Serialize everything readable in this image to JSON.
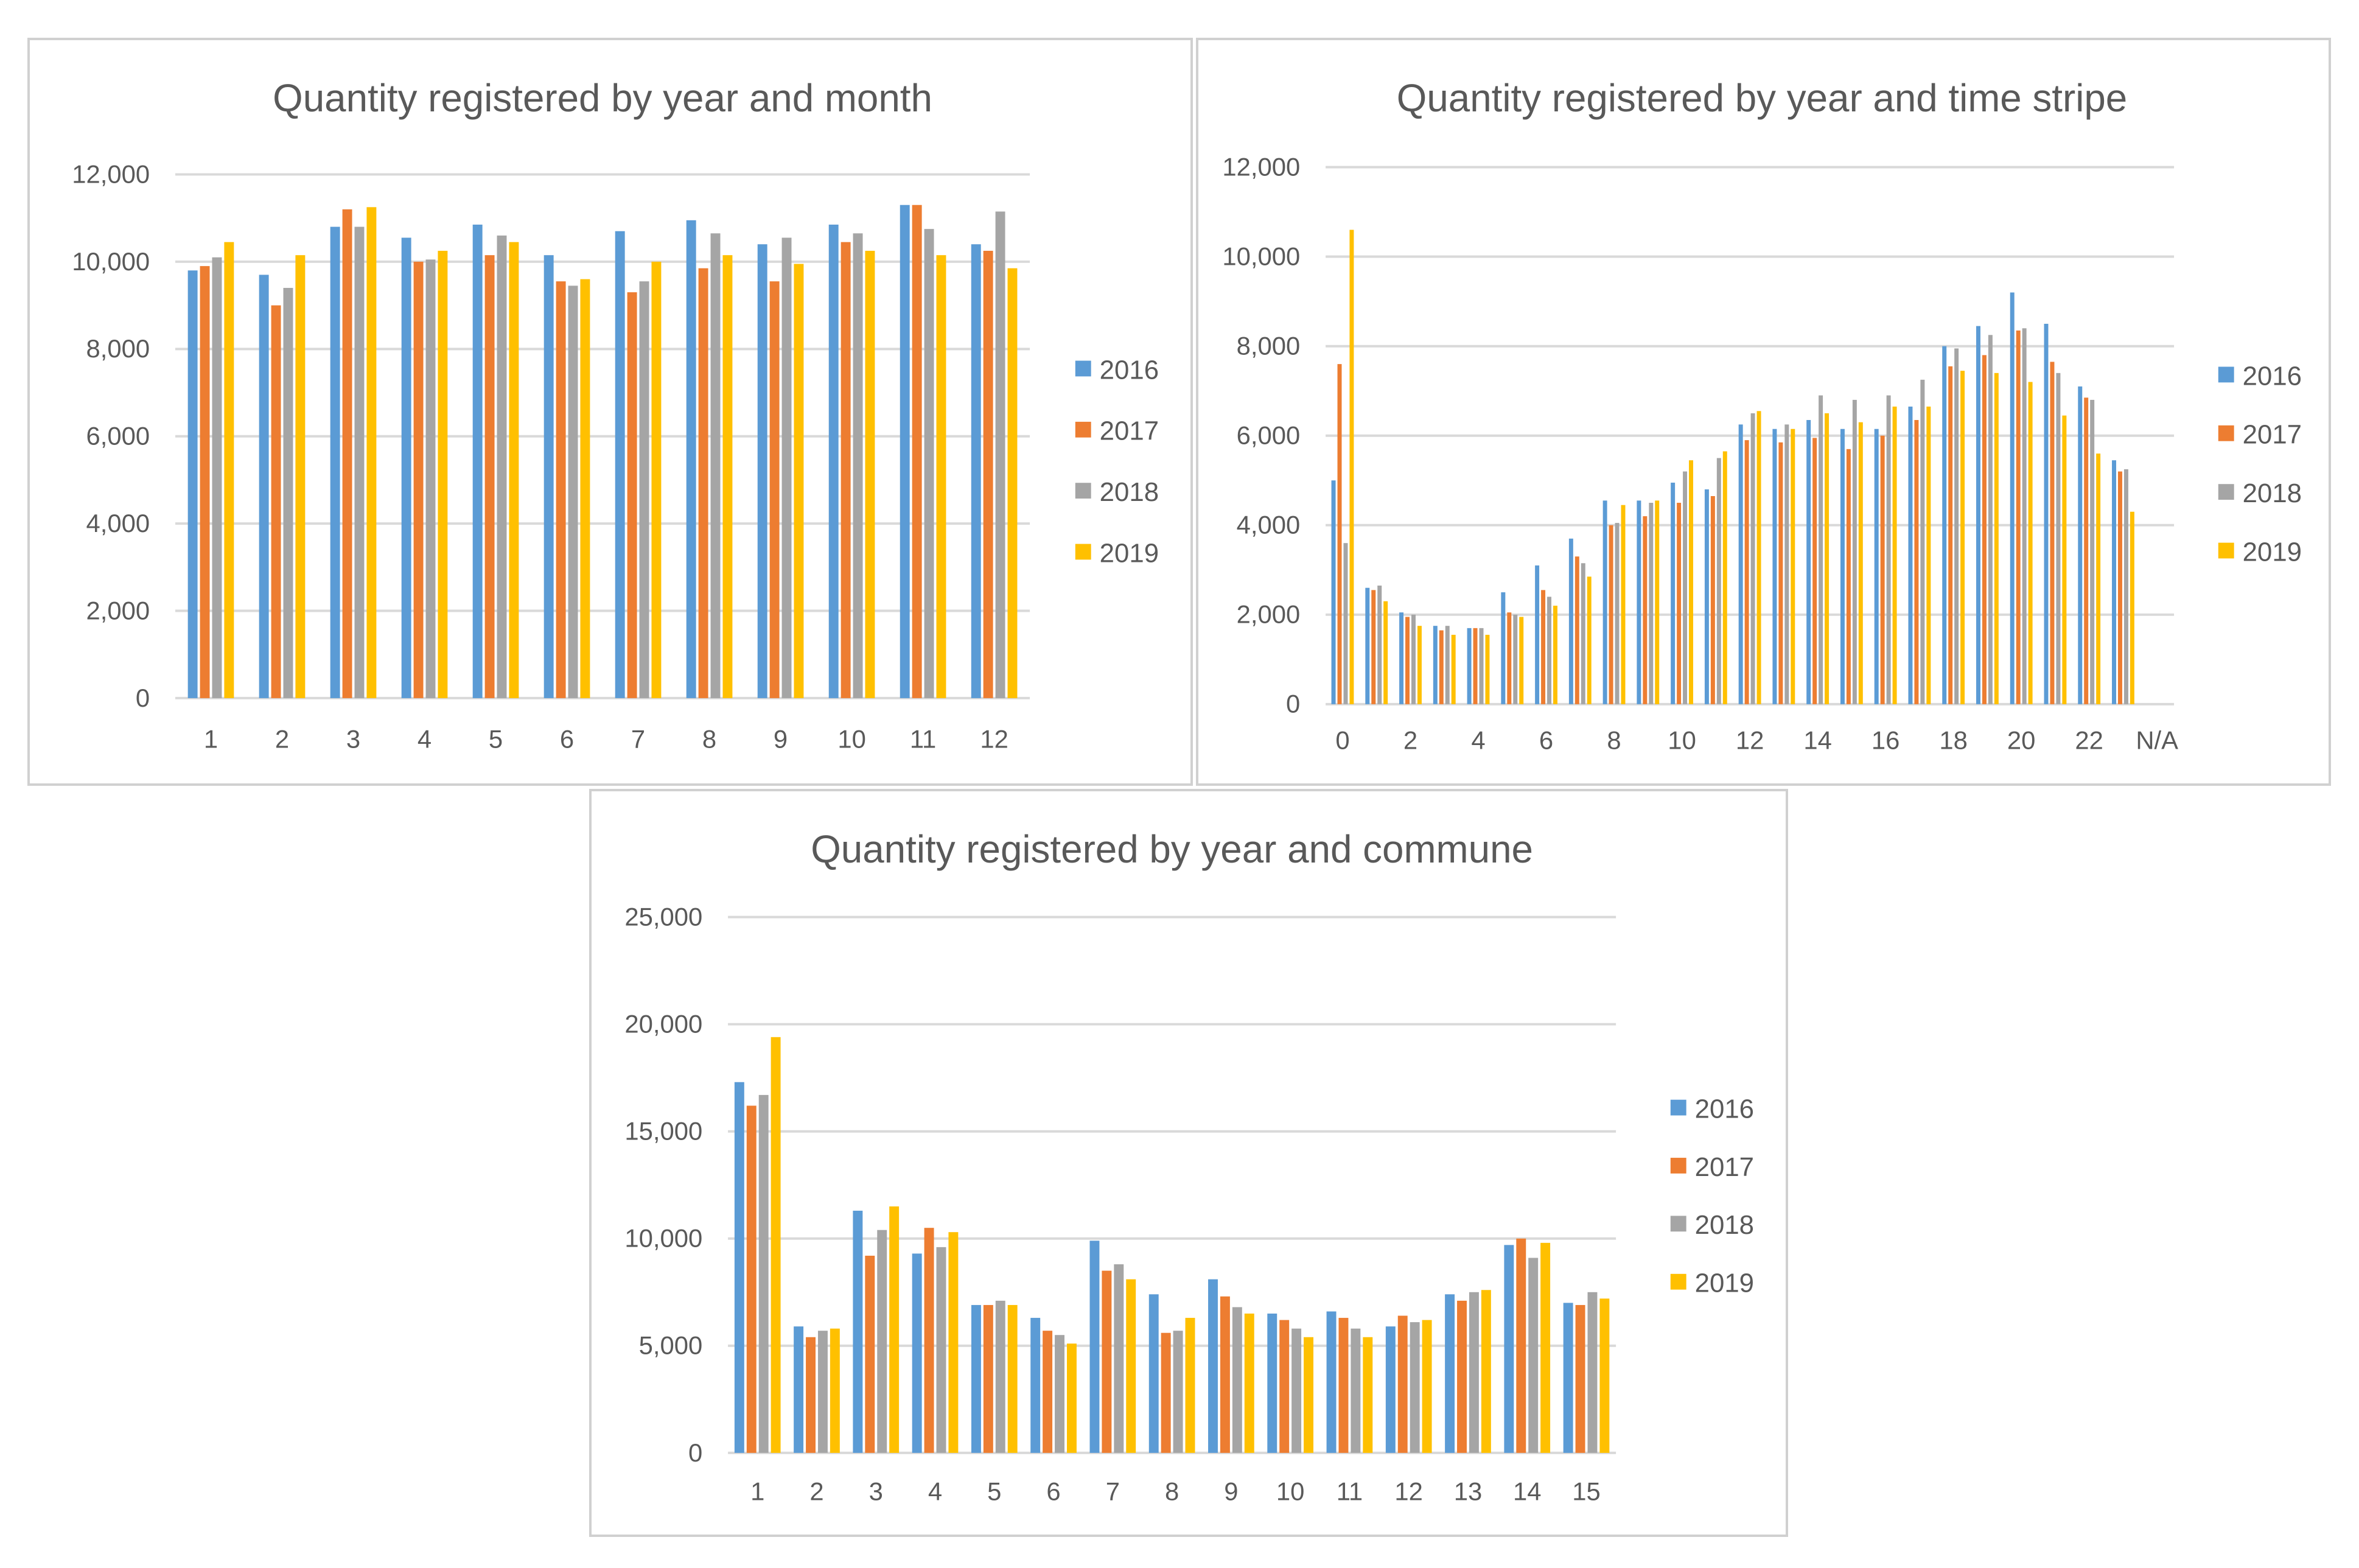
{
  "chart_data": [
    {
      "type": "bar",
      "title": "Quantity registered by year and month",
      "xlabel": "",
      "ylabel": "",
      "ylim": [
        0,
        12000
      ],
      "yticks": [
        "0",
        "2,000",
        "4,000",
        "6,000",
        "8,000",
        "10,000",
        "12,000"
      ],
      "categories": [
        "1",
        "2",
        "3",
        "4",
        "5",
        "6",
        "7",
        "8",
        "9",
        "10",
        "11",
        "12"
      ],
      "series": [
        {
          "name": "2016",
          "color": "#5B9BD5",
          "values": [
            9800,
            9700,
            10800,
            10550,
            10850,
            10150,
            10700,
            10950,
            10400,
            10850,
            11300,
            10400
          ]
        },
        {
          "name": "2017",
          "color": "#ED7D31",
          "values": [
            9900,
            9000,
            11200,
            10000,
            10150,
            9550,
            9300,
            9850,
            9550,
            10450,
            11300,
            10250
          ]
        },
        {
          "name": "2018",
          "color": "#A5A5A5",
          "values": [
            10100,
            9400,
            10800,
            10050,
            10600,
            9450,
            9550,
            10650,
            10550,
            10650,
            10750,
            11150
          ]
        },
        {
          "name": "2019",
          "color": "#FFC000",
          "values": [
            10450,
            10150,
            11250,
            10250,
            10450,
            9600,
            10000,
            10150,
            9950,
            10250,
            10150,
            9850
          ]
        }
      ],
      "legend": "right",
      "grid": true
    },
    {
      "type": "bar",
      "title": "Quantity registered by year and time stripe",
      "xlabel": "",
      "ylabel": "",
      "ylim": [
        0,
        12000
      ],
      "yticks": [
        "0",
        "2,000",
        "4,000",
        "6,000",
        "8,000",
        "10,000",
        "12,000"
      ],
      "categories": [
        "0",
        "1",
        "2",
        "3",
        "4",
        "5",
        "6",
        "7",
        "8",
        "9",
        "10",
        "11",
        "12",
        "13",
        "14",
        "15",
        "16",
        "17",
        "18",
        "19",
        "20",
        "21",
        "22",
        "23",
        "N/A"
      ],
      "category_labels_shown": [
        "0",
        "",
        "2",
        "",
        "4",
        "",
        "6",
        "",
        "8",
        "",
        "10",
        "",
        "12",
        "",
        "14",
        "",
        "16",
        "",
        "18",
        "",
        "20",
        "",
        "22",
        "",
        "N/A"
      ],
      "series": [
        {
          "name": "2016",
          "color": "#5B9BD5",
          "values": [
            5000,
            2600,
            2050,
            1750,
            1700,
            2500,
            3100,
            3700,
            4550,
            4550,
            4950,
            4800,
            6250,
            6150,
            6350,
            6150,
            6150,
            6650,
            8000,
            8450,
            9200,
            8500,
            7100,
            5450,
            0
          ]
        },
        {
          "name": "2017",
          "color": "#ED7D31",
          "values": [
            7600,
            2550,
            1950,
            1650,
            1700,
            2050,
            2550,
            3300,
            4000,
            4200,
            4500,
            4650,
            5900,
            5850,
            5950,
            5700,
            6000,
            6350,
            7550,
            7800,
            8350,
            7650,
            6850,
            5200,
            0
          ]
        },
        {
          "name": "2018",
          "color": "#A5A5A5",
          "values": [
            3600,
            2650,
            2000,
            1750,
            1700,
            2000,
            2400,
            3150,
            4050,
            4500,
            5200,
            5500,
            6500,
            6250,
            6900,
            6800,
            6900,
            7250,
            7950,
            8250,
            8400,
            7400,
            6800,
            5250,
            0
          ]
        },
        {
          "name": "2019",
          "color": "#FFC000",
          "values": [
            10600,
            2300,
            1750,
            1550,
            1550,
            1950,
            2200,
            2850,
            4450,
            4550,
            5450,
            5650,
            6550,
            6150,
            6500,
            6300,
            6650,
            6650,
            7450,
            7400,
            7200,
            6450,
            5600,
            4300,
            0
          ]
        }
      ],
      "legend": "right",
      "grid": true
    },
    {
      "type": "bar",
      "title": "Quantity registered by year and commune",
      "xlabel": "",
      "ylabel": "",
      "ylim": [
        0,
        25000
      ],
      "yticks": [
        "0",
        "5,000",
        "10,000",
        "15,000",
        "20,000",
        "25,000"
      ],
      "categories": [
        "1",
        "2",
        "3",
        "4",
        "5",
        "6",
        "7",
        "8",
        "9",
        "10",
        "11",
        "12",
        "13",
        "14",
        "15"
      ],
      "series": [
        {
          "name": "2016",
          "color": "#5B9BD5",
          "values": [
            17300,
            5900,
            11300,
            9300,
            6900,
            6300,
            9900,
            7400,
            8100,
            6500,
            6600,
            5900,
            7400,
            9700,
            7000
          ]
        },
        {
          "name": "2017",
          "color": "#ED7D31",
          "values": [
            16200,
            5400,
            9200,
            10500,
            6900,
            5700,
            8500,
            5600,
            7300,
            6200,
            6300,
            6400,
            7100,
            10000,
            6900
          ]
        },
        {
          "name": "2018",
          "color": "#A5A5A5",
          "values": [
            16700,
            5700,
            10400,
            9600,
            7100,
            5500,
            8800,
            5700,
            6800,
            5800,
            5800,
            6100,
            7500,
            9100,
            7500
          ]
        },
        {
          "name": "2019",
          "color": "#FFC000",
          "values": [
            19400,
            5800,
            11500,
            10300,
            6900,
            5100,
            8100,
            6300,
            6500,
            5400,
            5400,
            6200,
            7600,
            9800,
            7200
          ]
        }
      ],
      "legend": "right",
      "grid": true
    }
  ]
}
